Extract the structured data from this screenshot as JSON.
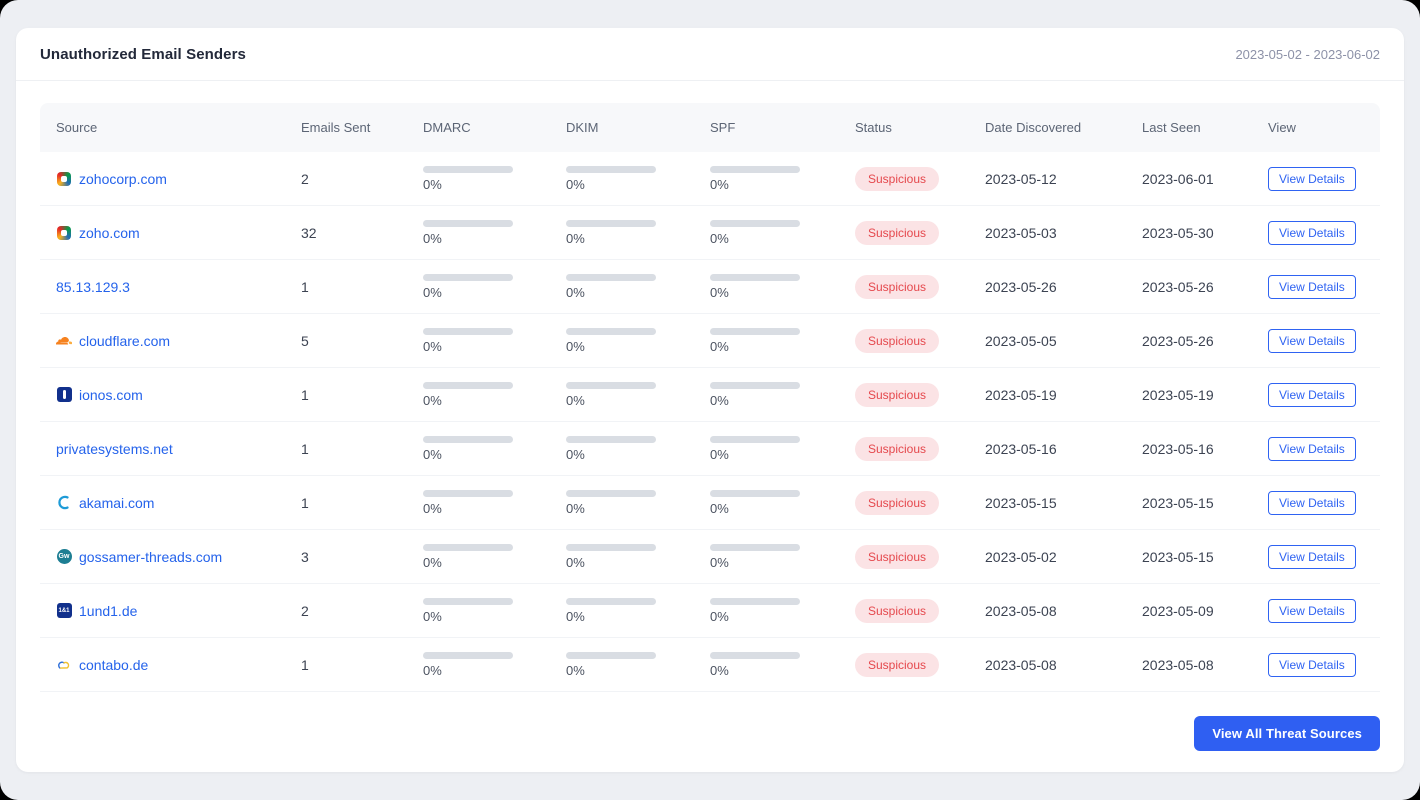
{
  "card": {
    "title": "Unauthorized Email Senders",
    "date_range": "2023-05-02 - 2023-06-02",
    "footer_button_label": "View All Threat Sources"
  },
  "table": {
    "columns": [
      "Source",
      "Emails Sent",
      "DMARC",
      "DKIM",
      "SPF",
      "Status",
      "Date Discovered",
      "Last Seen",
      "View"
    ],
    "view_details_label": "View Details",
    "rows": [
      {
        "source": "zohocorp.com",
        "icon": "zoho-icon",
        "emails_sent": "2",
        "dmarc": "0%",
        "dkim": "0%",
        "spf": "0%",
        "status": "Suspicious",
        "date_discovered": "2023-05-12",
        "last_seen": "2023-06-01"
      },
      {
        "source": "zoho.com",
        "icon": "zoho-icon",
        "emails_sent": "32",
        "dmarc": "0%",
        "dkim": "0%",
        "spf": "0%",
        "status": "Suspicious",
        "date_discovered": "2023-05-03",
        "last_seen": "2023-05-30"
      },
      {
        "source": "85.13.129.3",
        "icon": "",
        "emails_sent": "1",
        "dmarc": "0%",
        "dkim": "0%",
        "spf": "0%",
        "status": "Suspicious",
        "date_discovered": "2023-05-26",
        "last_seen": "2023-05-26"
      },
      {
        "source": "cloudflare.com",
        "icon": "cloudflare-icon",
        "emails_sent": "5",
        "dmarc": "0%",
        "dkim": "0%",
        "spf": "0%",
        "status": "Suspicious",
        "date_discovered": "2023-05-05",
        "last_seen": "2023-05-26"
      },
      {
        "source": "ionos.com",
        "icon": "ionos-icon",
        "emails_sent": "1",
        "dmarc": "0%",
        "dkim": "0%",
        "spf": "0%",
        "status": "Suspicious",
        "date_discovered": "2023-05-19",
        "last_seen": "2023-05-19"
      },
      {
        "source": "privatesystems.net",
        "icon": "",
        "emails_sent": "1",
        "dmarc": "0%",
        "dkim": "0%",
        "spf": "0%",
        "status": "Suspicious",
        "date_discovered": "2023-05-16",
        "last_seen": "2023-05-16"
      },
      {
        "source": "akamai.com",
        "icon": "akamai-icon",
        "emails_sent": "1",
        "dmarc": "0%",
        "dkim": "0%",
        "spf": "0%",
        "status": "Suspicious",
        "date_discovered": "2023-05-15",
        "last_seen": "2023-05-15"
      },
      {
        "source": "gossamer-threads.com",
        "icon": "gossamer-threads-icon",
        "emails_sent": "3",
        "dmarc": "0%",
        "dkim": "0%",
        "spf": "0%",
        "status": "Suspicious",
        "date_discovered": "2023-05-02",
        "last_seen": "2023-05-15"
      },
      {
        "source": "1und1.de",
        "icon": "1und1-icon",
        "emails_sent": "2",
        "dmarc": "0%",
        "dkim": "0%",
        "spf": "0%",
        "status": "Suspicious",
        "date_discovered": "2023-05-08",
        "last_seen": "2023-05-09"
      },
      {
        "source": "contabo.de",
        "icon": "contabo-icon",
        "emails_sent": "1",
        "dmarc": "0%",
        "dkim": "0%",
        "spf": "0%",
        "status": "Suspicious",
        "date_discovered": "2023-05-08",
        "last_seen": "2023-05-08"
      }
    ]
  },
  "colors": {
    "page_bg": "#edeff3",
    "accent": "#2f63f2",
    "accent_solid": "#2f5ff2",
    "link_color": "#2563eb",
    "badge_bg": "#fbe3e5",
    "badge_text": "#e5484d",
    "bar_track": "#d9dde3"
  }
}
